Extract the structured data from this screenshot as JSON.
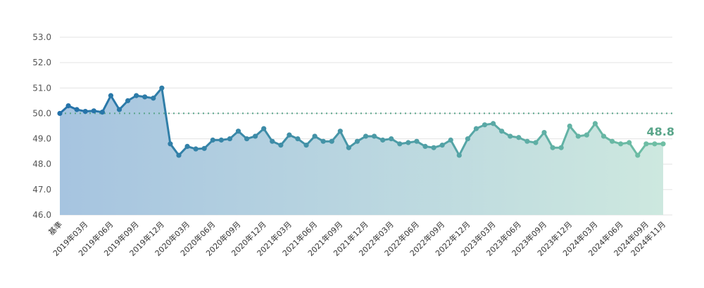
{
  "chart_data": {
    "type": "area",
    "title": "",
    "xlabel": "",
    "ylabel": "",
    "ylim": [
      46.0,
      53.0
    ],
    "yticks": [
      "53.0",
      "52.0",
      "51.0",
      "50.0",
      "49.0",
      "48.0",
      "47.0",
      "46.0"
    ],
    "grid": true,
    "reference_line": {
      "value": 50.0
    },
    "tick_labels": [
      "基準",
      "2019年03月",
      "2019年06月",
      "2019年09月",
      "2019年12月",
      "2020年03月",
      "2020年06月",
      "2020年09月",
      "2020年12月",
      "2021年03月",
      "2021年06月",
      "2021年09月",
      "2021年12月",
      "2022年03月",
      "2022年06月",
      "2022年09月",
      "2022年12月",
      "2023年03月",
      "2023年06月",
      "2023年09月",
      "2023年12月",
      "2024年03月",
      "2024年06月",
      "2024年09月",
      "2024年11月"
    ],
    "tick_indices": [
      0,
      3,
      6,
      9,
      12,
      15,
      18,
      21,
      24,
      27,
      30,
      33,
      36,
      39,
      42,
      45,
      48,
      51,
      54,
      57,
      60,
      63,
      66,
      69,
      71
    ],
    "values": [
      50.0,
      50.3,
      50.15,
      50.08,
      50.1,
      50.05,
      50.7,
      50.15,
      50.5,
      50.7,
      50.65,
      50.6,
      51.0,
      48.8,
      48.35,
      48.7,
      48.6,
      48.62,
      48.95,
      48.95,
      49.0,
      49.3,
      49.0,
      49.1,
      49.4,
      48.9,
      48.75,
      49.15,
      49.0,
      48.75,
      49.1,
      48.9,
      48.9,
      49.3,
      48.65,
      48.9,
      49.1,
      49.1,
      48.95,
      49.0,
      48.8,
      48.85,
      48.9,
      48.7,
      48.65,
      48.75,
      48.95,
      48.35,
      49.0,
      49.4,
      49.55,
      49.6,
      49.3,
      49.1,
      49.05,
      48.9,
      48.85,
      49.25,
      48.65,
      48.65,
      49.5,
      49.1,
      49.15,
      49.6,
      49.1,
      48.9,
      48.8,
      48.85,
      48.35,
      48.8,
      48.8,
      48.8
    ],
    "last_value_label": "48.8",
    "colors": {
      "line_start": "#2371a9",
      "line_end": "#6fbfa4",
      "area_start": "#a6c4e0",
      "area_end": "#cde8df",
      "reference": "#5aa58a",
      "label": "#5aa58a"
    }
  }
}
